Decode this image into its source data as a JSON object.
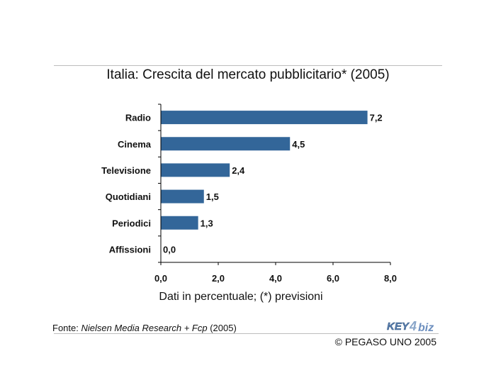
{
  "chart_data": {
    "type": "bar",
    "orientation": "horizontal",
    "title": "Italia: Crescita del mercato pubblicitario* (2005)",
    "xlabel": "Dati in percentuale; (*) previsioni",
    "categories": [
      "Radio",
      "Cinema",
      "Televisione",
      "Quotidiani",
      "Periodici",
      "Affissioni"
    ],
    "values": [
      7.2,
      4.5,
      2.4,
      1.5,
      1.3,
      0.0
    ],
    "data_labels": [
      "7,2",
      "4,5",
      "2,4",
      "1,5",
      "1,3",
      "0,0"
    ],
    "xlim": [
      0,
      8
    ],
    "xticks": [
      0,
      2,
      4,
      6,
      8
    ],
    "xtick_labels": [
      "0,0",
      "2,0",
      "4,0",
      "6,0",
      "8,0"
    ],
    "grid": false,
    "bar_color": "#336699"
  },
  "footer": {
    "source_prefix": "Fonte: ",
    "source_publisher": "Nielsen Media Research + Fcp",
    "source_year": " (2005)",
    "copyright": "© PEGASO UNO 2005",
    "logo_text_key": "KEY",
    "logo_text_4": "4",
    "logo_text_biz": "biz"
  }
}
